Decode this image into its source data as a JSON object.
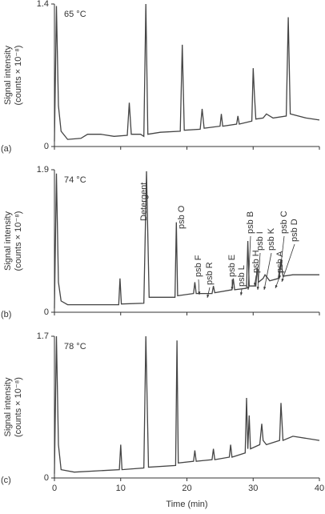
{
  "chart_data": [
    {
      "type": "line",
      "panel_label": "(a)",
      "temperature": "65 °C",
      "y_label": [
        "Signal intensity",
        "(counts × 10⁻⁸)"
      ],
      "xlim": [
        0,
        40
      ],
      "xticks": [
        0,
        10,
        20,
        30,
        40
      ],
      "ylim": [
        0,
        1.4
      ],
      "yticks": [
        0,
        1.4
      ],
      "x": [
        0,
        0.3,
        0.6,
        1,
        2,
        4,
        5,
        7,
        9,
        11,
        11.3,
        11.6,
        13,
        13.5,
        13.8,
        14.1,
        16,
        19,
        19.3,
        19.6,
        22,
        22.3,
        22.6,
        25,
        25.2,
        25.4,
        27.5,
        27.7,
        27.9,
        29.8,
        30,
        30.2,
        30.4,
        31.5,
        32,
        33,
        35,
        35.3,
        35.6,
        38,
        40
      ],
      "series": [
        {
          "color": "#444",
          "values": [
            0.05,
            1.38,
            0.4,
            0.15,
            0.07,
            0.08,
            0.12,
            0.12,
            0.1,
            0.11,
            0.43,
            0.12,
            0.12,
            0.1,
            1.4,
            0.12,
            0.14,
            0.15,
            1.0,
            0.16,
            0.17,
            0.37,
            0.18,
            0.2,
            0.32,
            0.2,
            0.22,
            0.3,
            0.22,
            0.25,
            0.77,
            0.5,
            0.27,
            0.28,
            0.32,
            0.28,
            0.3,
            1.27,
            0.32,
            0.28,
            0.26
          ]
        }
      ]
    },
    {
      "type": "line",
      "panel_label": "(b)",
      "temperature": "74 °C",
      "y_label": [
        "Signal intensity",
        "(counts × 10⁻⁸)"
      ],
      "xlim": [
        0,
        40
      ],
      "xticks": [
        0,
        10,
        20,
        30,
        40
      ],
      "ylim": [
        0,
        1.9
      ],
      "yticks": [
        0,
        1.9
      ],
      "annotations": [
        "Detergent",
        "psb O",
        "psb F",
        "psb R",
        "psb E",
        "psb L",
        "psb H",
        "psb B",
        "psb I",
        "psb K",
        "psb A",
        "psb C",
        "psb D"
      ],
      "x": [
        0,
        0.3,
        0.6,
        1,
        2,
        5,
        9.7,
        9.9,
        10.1,
        13.5,
        13.9,
        14.3,
        16,
        18.2,
        18.4,
        18.6,
        21,
        21.2,
        21.4,
        23.8,
        24,
        24.2,
        26.8,
        27,
        27.2,
        29,
        29.2,
        29.4,
        30.4,
        30.6,
        30.8,
        31.5,
        31.8,
        32.5,
        33.8,
        34.2,
        34.5,
        36,
        40
      ],
      "series": [
        {
          "color": "#444",
          "values": [
            0.05,
            1.85,
            0.4,
            0.15,
            0.1,
            0.1,
            0.1,
            0.45,
            0.11,
            0.12,
            1.88,
            0.2,
            0.2,
            0.2,
            1.2,
            0.22,
            0.25,
            0.4,
            0.25,
            0.25,
            0.35,
            0.26,
            0.3,
            0.45,
            0.3,
            0.32,
            0.95,
            0.35,
            0.35,
            0.6,
            0.4,
            0.45,
            0.5,
            0.42,
            0.45,
            0.7,
            0.48,
            0.5,
            0.5
          ]
        }
      ]
    },
    {
      "type": "line",
      "panel_label": "(c)",
      "temperature": "78 °C",
      "y_label": [
        "Signal intensity",
        "(counts × 10⁻⁸)"
      ],
      "x_label": "Time (min)",
      "xlim": [
        0,
        40
      ],
      "xticks": [
        0,
        10,
        20,
        30,
        40
      ],
      "ylim": [
        0,
        1.7
      ],
      "yticks": [
        0,
        1.7
      ],
      "x": [
        0,
        0.3,
        0.6,
        1,
        3,
        9.8,
        10,
        10.2,
        13.5,
        13.8,
        14.2,
        18.3,
        18.5,
        18.7,
        21,
        21.2,
        21.4,
        23.8,
        24,
        24.2,
        26.4,
        26.6,
        26.8,
        28.8,
        29,
        29.2,
        29.4,
        29.6,
        31,
        31.3,
        31.5,
        32,
        34,
        34.2,
        34.5,
        36,
        40
      ],
      "series": [
        {
          "color": "#444",
          "values": [
            0.05,
            1.7,
            0.4,
            0.1,
            0.07,
            0.1,
            0.4,
            0.1,
            0.12,
            1.7,
            0.13,
            0.15,
            1.65,
            0.18,
            0.2,
            0.33,
            0.2,
            0.22,
            0.35,
            0.22,
            0.25,
            0.4,
            0.25,
            0.3,
            0.96,
            0.35,
            0.75,
            0.35,
            0.4,
            0.65,
            0.45,
            0.4,
            0.45,
            0.9,
            0.45,
            0.5,
            0.45
          ]
        }
      ]
    }
  ]
}
